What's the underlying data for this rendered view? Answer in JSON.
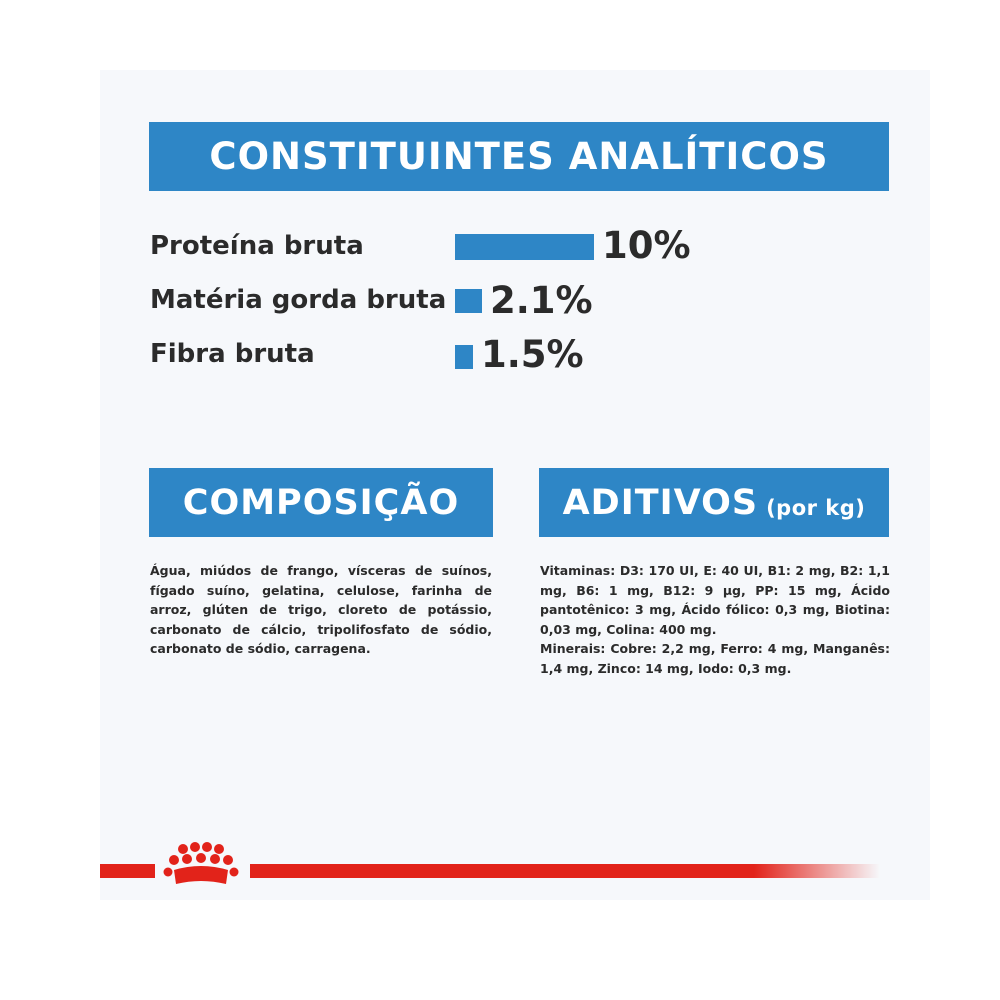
{
  "analytic": {
    "title": "CONSTITUINTES ANALÍTICOS",
    "rows": [
      {
        "label": "Proteína bruta",
        "value": "10%",
        "level": 10
      },
      {
        "label": "Matéria gorda bruta",
        "value": "2.1%",
        "level": 2.1
      },
      {
        "label": "Fibra bruta",
        "value": "1.5%",
        "level": 1.5
      }
    ]
  },
  "composition": {
    "title": "COMPOSIÇÃO",
    "text": "Água, miúdos de frango, vísceras de suínos, fígado suíno, gelatina, celulose, farinha de arroz, glúten de trigo, cloreto de potássio, carbonato de cálcio, tripolifosfato de sódio, carbonato de sódio, carragena."
  },
  "additives": {
    "title": "ADITIVOS",
    "title_suffix": "(por kg)",
    "vitamins": "Vitaminas: D3: 170 UI, E: 40 UI, B1: 2 mg, B2: 1,1 mg, B6: 1 mg, B12: 9 µg, PP: 15 mg, Ácido pantotênico: 3 mg, Ácido fólico: 0,3 mg, Biotina: 0,03 mg, Colina: 400 mg.",
    "minerals": "Minerais: Cobre: 2,2 mg, Ferro: 4 mg, Manganês: 1,4 mg, Zinco: 14 mg, Iodo: 0,3 mg."
  },
  "colors": {
    "accent_blue": "#2e86c6",
    "brand_red": "#e2231a",
    "text": "#2b2b2b"
  },
  "icons": {
    "crown": "crown-logo-icon"
  }
}
